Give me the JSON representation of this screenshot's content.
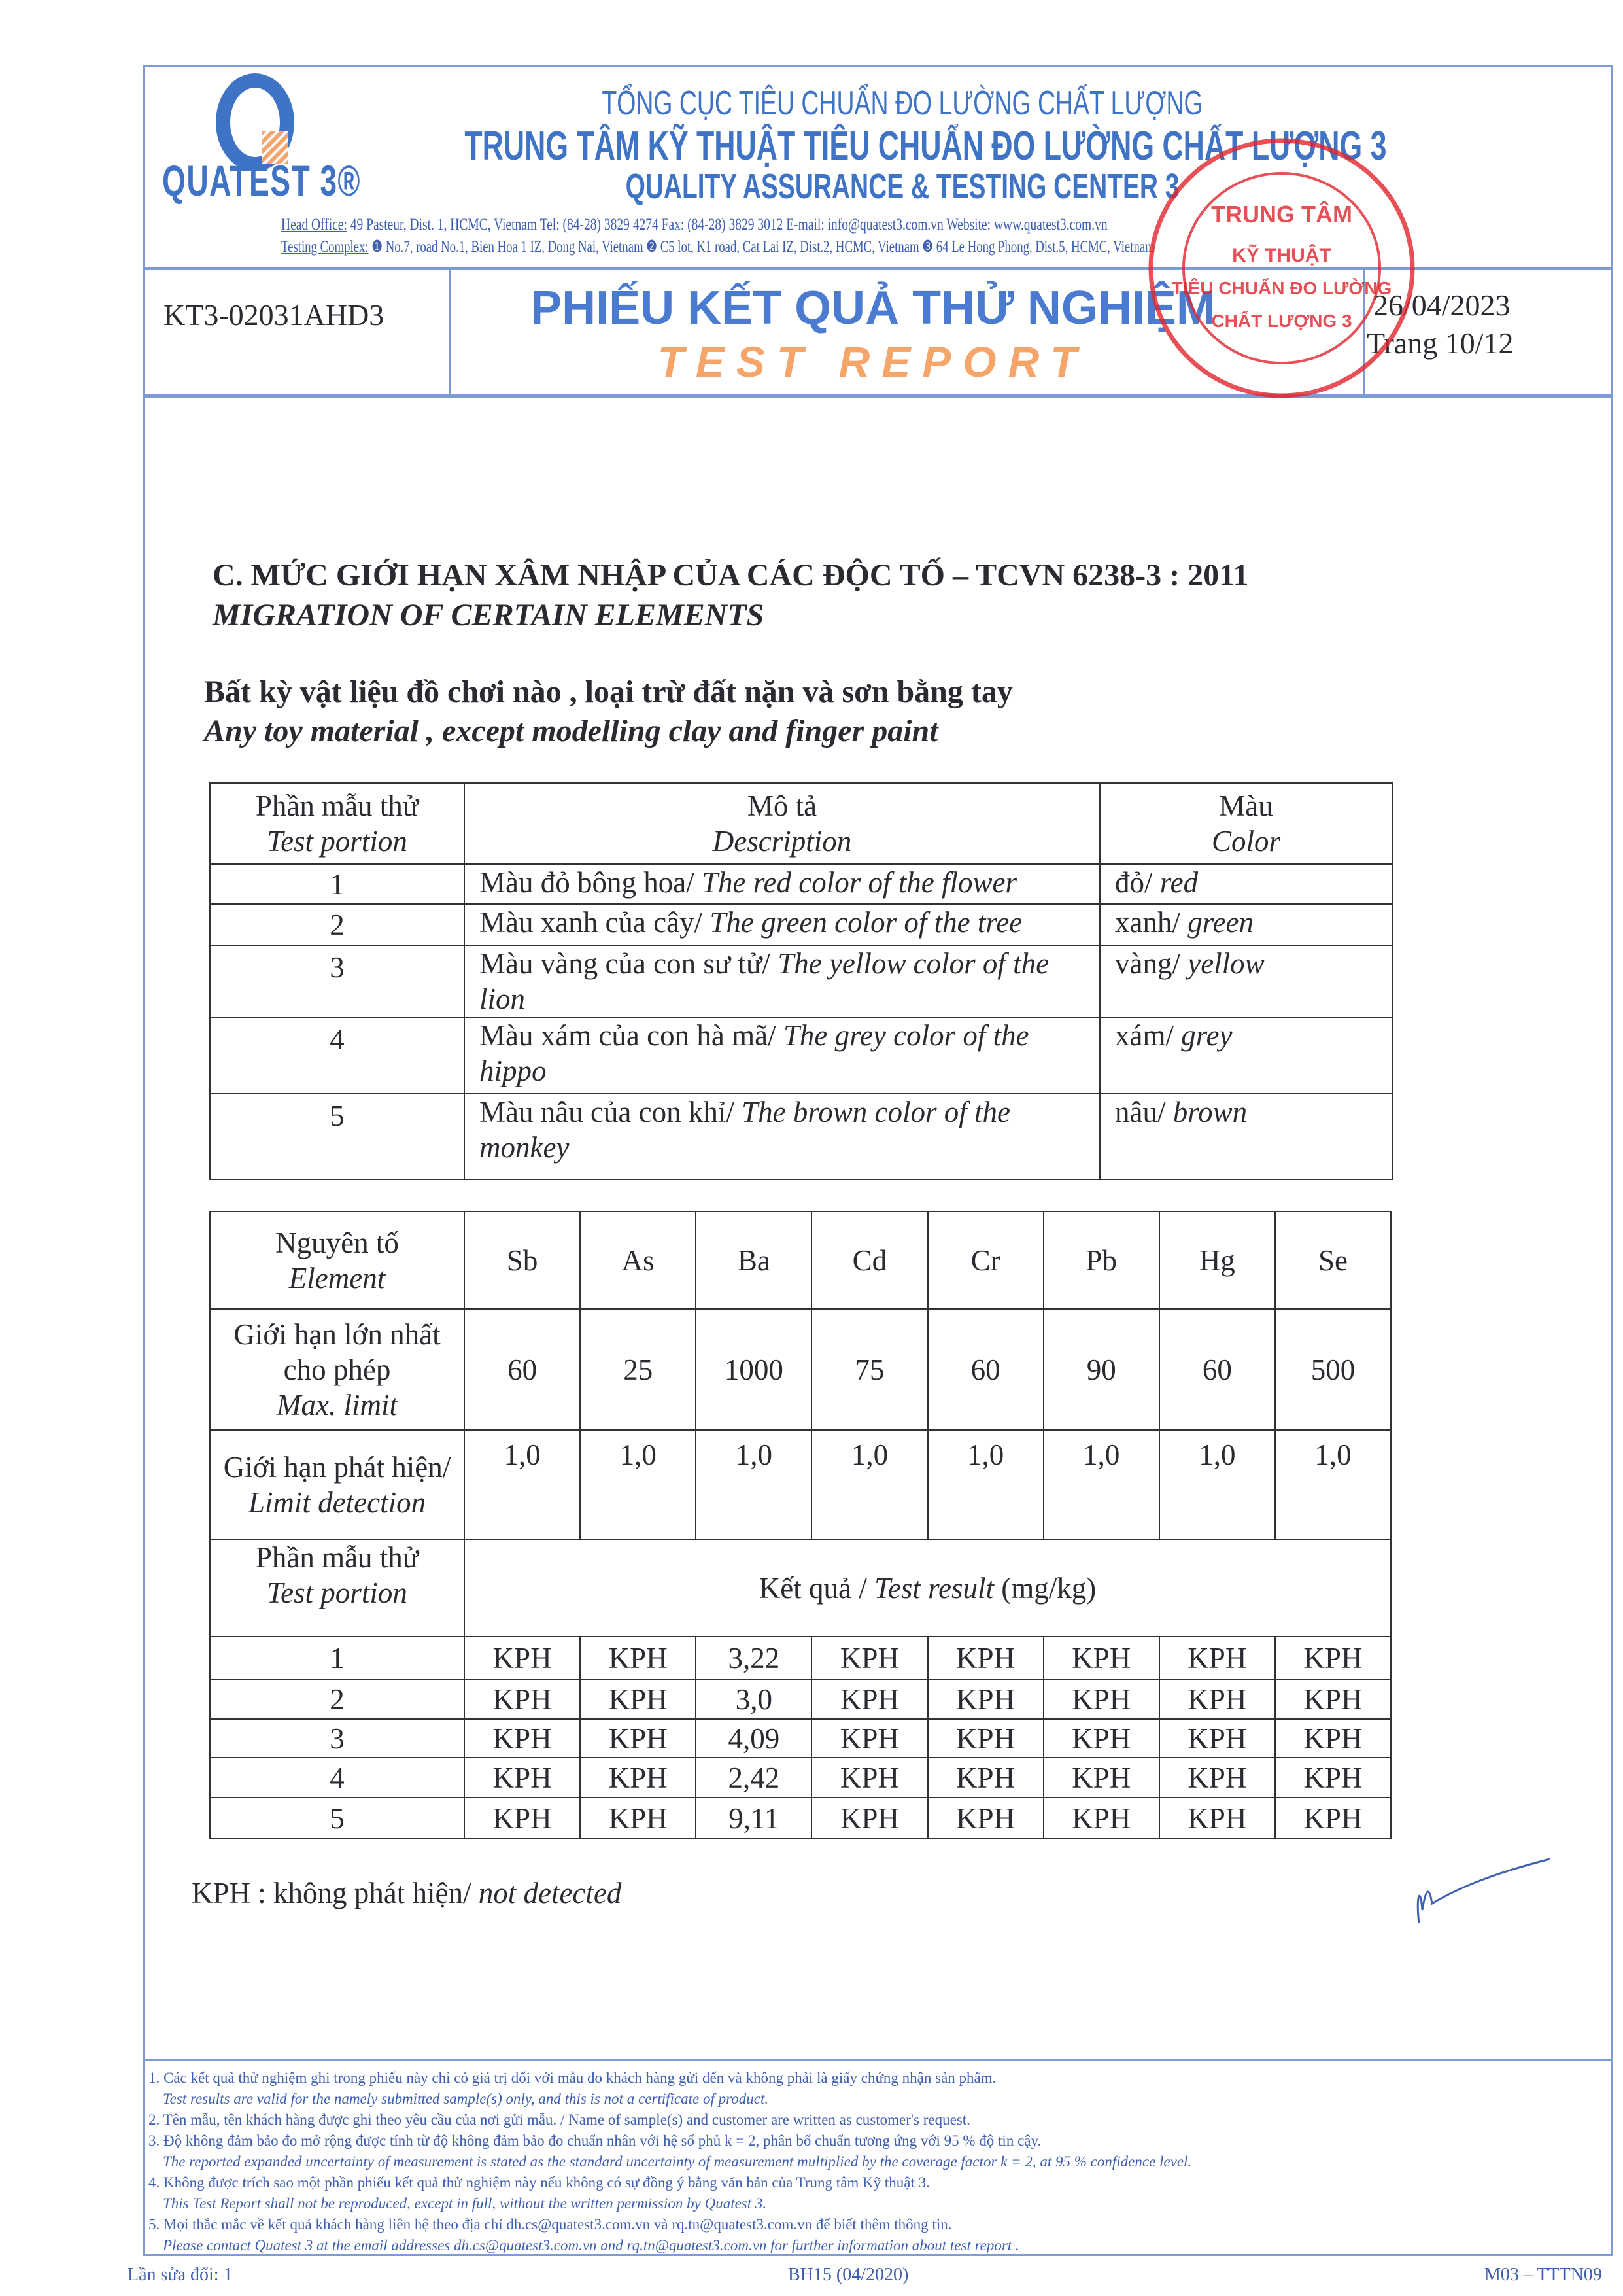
{
  "header": {
    "logo_text": "QUATEST 3®",
    "agency": "TỔNG CỤC TIÊU CHUẨN ĐO LƯỜNG CHẤT LƯỢNG",
    "center_vn": "TRUNG TÂM KỸ THUẬT TIÊU CHUẨN ĐO LƯỜNG CHẤT LƯỢNG 3",
    "center_en": "QUALITY ASSURANCE & TESTING CENTER 3",
    "head_office_label": "Head Office:",
    "head_office": "49 Pasteur, Dist. 1, HCMC, Vietnam      Tel: (84-28) 3829 4274      Fax: (84-28) 3829 3012      E-mail: info@quatest3.com.vn      Website: www.quatest3.com.vn",
    "testing_complex_label": "Testing Complex:",
    "testing_complex": "❶ No.7, road No.1, Bien Hoa 1 IZ, Dong Nai, Vietnam ❷ C5 lot, K1 road, Cat Lai IZ, Dist.2, HCMC, Vietnam ❸ 64 Le Hong Phong, Dist.5, HCMC, Vietnam",
    "report_no": "KT3-02031AHD3",
    "title_vn": "PHIẾU KẾT QUẢ THỬ NGHIỆM",
    "title_en": "TEST REPORT",
    "date": "26/04/2023",
    "page": "Trang 10/12",
    "stamp_text": "TRUNG TÂM KỸ THUẬT TIÊU CHUẨN ĐO LƯỜNG CHẤT LƯỢNG 3",
    "brand_color": "#3f73c6",
    "accent_color": "#f5a46a",
    "stamp_color": "#e0242c"
  },
  "section": {
    "title_vn": "C. MỨC GIỚI HẠN XÂM NHẬP CỦA CÁC ĐỘC TỐ – TCVN 6238-3 : 2011",
    "title_en": "MIGRATION OF CERTAIN ELEMENTS",
    "scope_vn": "Bất kỳ vật liệu đồ chơi nào , loại trừ đất nặn và sơn bằng tay",
    "scope_en": "Any toy material , except modelling clay and finger paint"
  },
  "samples_table": {
    "headers": [
      {
        "vn": "Phần mẫu thử",
        "en": "Test portion"
      },
      {
        "vn": "Mô tả",
        "en": "Description"
      },
      {
        "vn": "Màu",
        "en": "Color"
      }
    ],
    "rows": [
      {
        "no": "1",
        "desc_vn": "Màu đỏ bông hoa/ ",
        "desc_en": "The red color of the flower",
        "color_vn": "đỏ/ ",
        "color_en": "red"
      },
      {
        "no": "2",
        "desc_vn": "Màu xanh của cây/ ",
        "desc_en": "The green color of the tree",
        "color_vn": "xanh/ ",
        "color_en": "green"
      },
      {
        "no": "3",
        "desc_vn": "Màu vàng của con sư tử/ ",
        "desc_en": "The yellow color of the lion",
        "color_vn": "vàng/ ",
        "color_en": "yellow"
      },
      {
        "no": "4",
        "desc_vn": "Màu xám của con hà mã/ ",
        "desc_en": "The grey color of the hippo",
        "color_vn": "xám/ ",
        "color_en": "grey"
      },
      {
        "no": "5",
        "desc_vn": "Màu nâu của con khỉ/ ",
        "desc_en": "The brown color of the monkey",
        "color_vn": "nâu/ ",
        "color_en": "brown"
      }
    ]
  },
  "results_table": {
    "element_label_vn": "Nguyên tố",
    "element_label_en": "Element",
    "elements": [
      "Sb",
      "As",
      "Ba",
      "Cd",
      "Cr",
      "Pb",
      "Hg",
      "Se"
    ],
    "max_limit_label_vn": "Giới hạn lớn nhất cho phép",
    "max_limit_label_en": "Max. limit",
    "max_limits": [
      "60",
      "25",
      "1000",
      "75",
      "60",
      "90",
      "60",
      "500"
    ],
    "lod_label_vn": "Giới hạn phát hiện/ ",
    "lod_label_en": "Limit detection",
    "lods": [
      "1,0",
      "1,0",
      "1,0",
      "1,0",
      "1,0",
      "1,0",
      "1,0",
      "1,0"
    ],
    "portion_label_vn": "Phần mẫu thử",
    "portion_label_en": "Test portion",
    "result_label_vn": "Kết quả / ",
    "result_label_en": "Test result",
    "result_unit": " (mg/kg)",
    "rows": [
      {
        "no": "1",
        "values": [
          "KPH",
          "KPH",
          "3,22",
          "KPH",
          "KPH",
          "KPH",
          "KPH",
          "KPH"
        ]
      },
      {
        "no": "2",
        "values": [
          "KPH",
          "KPH",
          "3,0",
          "KPH",
          "KPH",
          "KPH",
          "KPH",
          "KPH"
        ]
      },
      {
        "no": "3",
        "values": [
          "KPH",
          "KPH",
          "4,09",
          "KPH",
          "KPH",
          "KPH",
          "KPH",
          "KPH"
        ]
      },
      {
        "no": "4",
        "values": [
          "KPH",
          "KPH",
          "2,42",
          "KPH",
          "KPH",
          "KPH",
          "KPH",
          "KPH"
        ]
      },
      {
        "no": "5",
        "values": [
          "KPH",
          "KPH",
          "9,11",
          "KPH",
          "KPH",
          "KPH",
          "KPH",
          "KPH"
        ]
      }
    ]
  },
  "legend": {
    "vn": "KPH : không phát hiện/ ",
    "en": "not detected"
  },
  "notes": [
    {
      "vn": "1. Các kết quả thử nghiệm ghi trong phiếu này chỉ có giá trị đối với mẫu do khách hàng gửi đến và không phải là giấy chứng nhận sản phẩm.",
      "en": "Test results are valid for the namely submitted sample(s) only, and this is not a certificate of product."
    },
    {
      "vn": "2. Tên mẫu, tên khách hàng được ghi theo yêu cầu của nơi gửi mẫu. / Name of sample(s) and customer are written as customer's request.",
      "en": ""
    },
    {
      "vn": "3. Độ không đảm bảo đo mở rộng được tính từ độ không đảm bảo đo chuẩn nhân với hệ số phủ k = 2, phân bố chuẩn tương ứng với 95 % độ tin cậy.",
      "en": "The reported expanded uncertainty of measurement is stated as the standard uncertainty of measurement multiplied by the coverage factor k = 2, at 95 % confidence level."
    },
    {
      "vn": "4. Không được trích sao một phần phiếu kết quả thử nghiệm này nếu không có sự đồng ý bằng văn bản của Trung tâm Kỹ thuật 3.",
      "en": "This Test Report shall not be reproduced, except in full, without the written permission by Quatest 3."
    },
    {
      "vn": "5. Mọi thắc mắc về kết quả khách hàng liên hệ theo địa chỉ dh.cs@quatest3.com.vn và rq.tn@quatest3.com.vn để biết thêm thông tin.",
      "en": "Please contact Quatest 3 at the email addresses dh.cs@quatest3.com.vn and rq.tn@quatest3.com.vn  for further information about test report ."
    }
  ],
  "footer": {
    "revision": "Lần sửa đổi: 1",
    "form_code": "BH15 (04/2020)",
    "doc_code": "M03 – TTTN09"
  }
}
